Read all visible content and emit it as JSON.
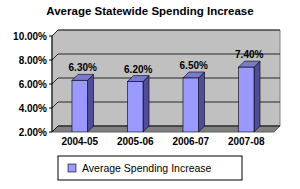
{
  "chart_data": {
    "type": "bar",
    "title": "Average Statewide Spending Increase",
    "categories": [
      "2004-05",
      "2005-06",
      "2006-07",
      "2007-08"
    ],
    "series": [
      {
        "name": "Average Spending Increase",
        "color": "#9999ff",
        "values": [
          6.3,
          6.2,
          6.5,
          7.4
        ],
        "value_labels": [
          "6.30%",
          "6.20%",
          "6.50%",
          "7.40%"
        ]
      }
    ],
    "ylim": [
      2,
      10
    ],
    "yticks": [
      {
        "value": 2,
        "label": "2.00%"
      },
      {
        "value": 4,
        "label": "4.00%"
      },
      {
        "value": 6,
        "label": "6.00%"
      },
      {
        "value": 8,
        "label": "8.00%"
      },
      {
        "value": 10,
        "label": "10.00%"
      }
    ],
    "grid": true,
    "data_labels": true,
    "legend": "bottom"
  }
}
